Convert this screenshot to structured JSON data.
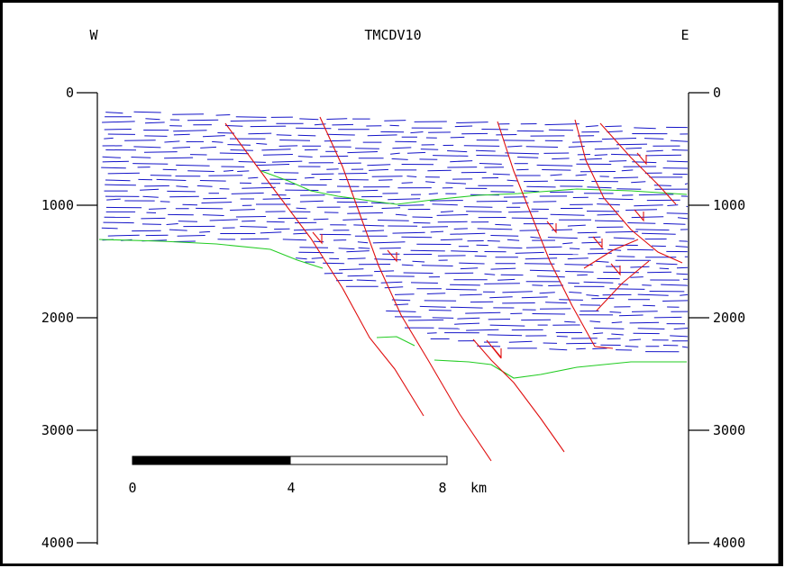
{
  "section": {
    "title": "TMCDV10",
    "left_direction": "W",
    "right_direction": "E"
  },
  "depth_axis": {
    "ticks": [
      "0",
      "1000",
      "2000",
      "3000",
      "4000"
    ],
    "values": [
      0,
      1000,
      2000,
      3000,
      4000
    ]
  },
  "scale_bar": {
    "labels": [
      "0",
      "4",
      "8"
    ],
    "unit": "km",
    "unit_label": "8 km",
    "max_km": 8
  },
  "colors": {
    "reflectors": "#1414c8",
    "faults": "#e01010",
    "horizons": "#22cc22",
    "frame": "#000000"
  }
}
